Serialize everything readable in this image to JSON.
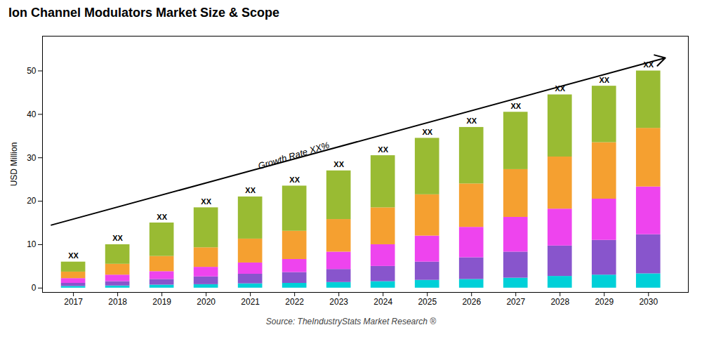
{
  "chart_data": {
    "type": "bar",
    "stacked": true,
    "title": "Ion Channel Modulators Market Size & Scope",
    "ylabel": "USD Million",
    "source": "Source: TheIndustryStats Market Research ®",
    "x": [
      2017,
      2018,
      2019,
      2020,
      2021,
      2022,
      2023,
      2024,
      2025,
      2026,
      2027,
      2028,
      2029,
      2030
    ],
    "series": [
      {
        "color": "#00D0D8",
        "values": [
          0.4,
          0.5,
          0.7,
          0.8,
          1.0,
          1.1,
          1.3,
          1.5,
          1.8,
          2.0,
          2.3,
          2.7,
          3.0,
          3.3
        ]
      },
      {
        "color": "#8855CC",
        "values": [
          0.7,
          1.0,
          1.3,
          1.8,
          2.2,
          2.5,
          3.0,
          3.5,
          4.2,
          5.0,
          6.0,
          7.0,
          8.0,
          9.0
        ]
      },
      {
        "color": "#EE44EE",
        "values": [
          1.1,
          1.5,
          1.8,
          2.2,
          2.6,
          3.0,
          4.0,
          5.0,
          6.0,
          7.0,
          8.0,
          8.5,
          9.5,
          11.0
        ]
      },
      {
        "color": "#F5A030",
        "values": [
          1.5,
          2.5,
          3.5,
          4.5,
          5.5,
          6.5,
          7.5,
          8.5,
          9.5,
          10.0,
          11.0,
          12.0,
          13.0,
          13.5
        ]
      },
      {
        "color": "#99BB33",
        "values": [
          2.3,
          4.5,
          7.7,
          9.2,
          9.7,
          10.4,
          11.2,
          12.0,
          13.0,
          13.0,
          13.2,
          14.3,
          13.0,
          13.2
        ]
      }
    ],
    "xlim": [
      2016.3,
      2030.9
    ],
    "xticks": [
      2017,
      2018,
      2019,
      2020,
      2021,
      2022,
      2023,
      2024,
      2025,
      2026,
      2027,
      2028,
      2029,
      2030
    ],
    "ylim": [
      -1,
      58
    ],
    "yticks": [
      0,
      10,
      20,
      30,
      40,
      50
    ],
    "grid": false,
    "annotations": [
      {
        "text": "XX",
        "x": 2017
      },
      {
        "text": "XX",
        "x": 2018
      },
      {
        "text": "XX",
        "x": 2019
      },
      {
        "text": "XX",
        "x": 2020
      },
      {
        "text": "XX",
        "x": 2021
      },
      {
        "text": "XX",
        "x": 2022
      },
      {
        "text": "XX",
        "x": 2023
      },
      {
        "text": "XX",
        "x": 2024
      },
      {
        "text": "XX",
        "x": 2025
      },
      {
        "text": "XX",
        "x": 2026
      },
      {
        "text": "XX",
        "x": 2027
      },
      {
        "text": "XX",
        "x": 2028
      },
      {
        "text": "XX",
        "x": 2029
      },
      {
        "text": "XX",
        "x": 2030
      },
      {
        "text": "Growth Rate XX%",
        "x": 2022.0,
        "y": 29.5
      }
    ],
    "arrow": {
      "x1": 2016.5,
      "y1": 14.5,
      "x2": 2030.38,
      "y2": 53.0
    }
  }
}
